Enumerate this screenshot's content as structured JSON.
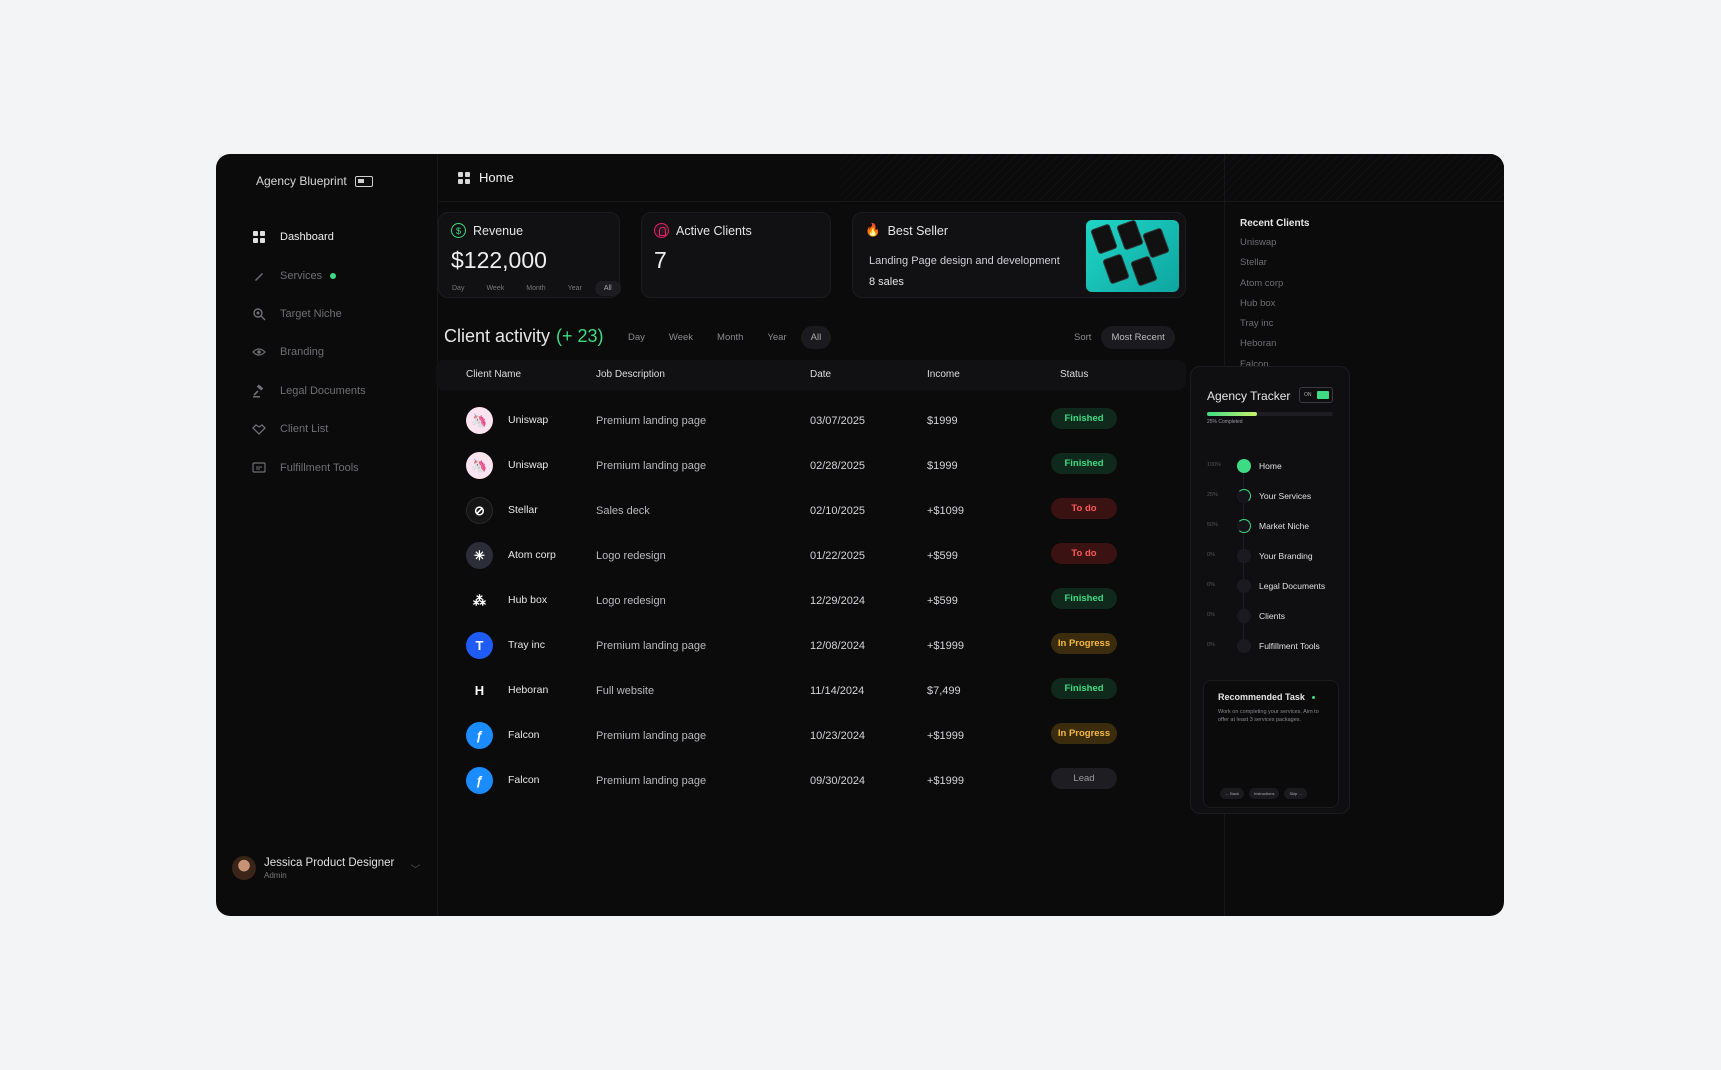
{
  "sidebar": {
    "brand": "Agency Blueprint",
    "items": [
      {
        "label": "Dashboard",
        "icon": "grid-icon"
      },
      {
        "label": "Services",
        "icon": "pen-icon"
      },
      {
        "label": "Target Niche",
        "icon": "target-icon"
      },
      {
        "label": "Branding",
        "icon": "eye-icon"
      },
      {
        "label": "Legal Documents",
        "icon": "gavel-icon"
      },
      {
        "label": "Client List",
        "icon": "handshake-icon"
      },
      {
        "label": "Fulfillment Tools",
        "icon": "tools-icon"
      }
    ],
    "user": {
      "name": "Jessica Product Designer",
      "role": "Admin"
    }
  },
  "header": {
    "title": "Home"
  },
  "revenue": {
    "title": "Revenue",
    "value": "$122,000",
    "ranges": [
      "Day",
      "Week",
      "Month",
      "Year",
      "All"
    ]
  },
  "active_clients": {
    "title": "Active Clients",
    "value": "7"
  },
  "best_seller": {
    "title": "Best Seller",
    "product": "Landing Page design and development",
    "sales": "8 sales"
  },
  "activity": {
    "title": "Client activity",
    "count": "(+ 23)",
    "filters": [
      "Day",
      "Week",
      "Month",
      "Year",
      "All"
    ],
    "sort_label": "Sort",
    "sort_value": "Most Recent"
  },
  "table": {
    "headers": [
      "Client Name",
      "Job Description",
      "Date",
      "Income",
      "Status"
    ],
    "rows": [
      {
        "client": "Uniswap",
        "job": "Premium landing page",
        "date": "03/07/2025",
        "income": "$1999",
        "status": "Finished"
      },
      {
        "client": "Uniswap",
        "job": "Premium landing page",
        "date": "02/28/2025",
        "income": "$1999",
        "status": "Finished"
      },
      {
        "client": "Stellar",
        "job": "Sales deck",
        "date": "02/10/2025",
        "income": "+$1099",
        "status": "To do"
      },
      {
        "client": "Atom corp",
        "job": "Logo redesign",
        "date": "01/22/2025",
        "income": "+$599",
        "status": "To do"
      },
      {
        "client": "Hub box",
        "job": "Logo redesign",
        "date": "12/29/2024",
        "income": "+$599",
        "status": "Finished"
      },
      {
        "client": "Tray inc",
        "job": "Premium landing page",
        "date": "12/08/2024",
        "income": "+$1999",
        "status": "In Progress"
      },
      {
        "client": "Heboran",
        "job": "Full website",
        "date": "11/14/2024",
        "income": "$7,499",
        "status": "Finished"
      },
      {
        "client": "Falcon",
        "job": "Premium landing page",
        "date": "10/23/2024",
        "income": "+$1999",
        "status": "In Progress"
      },
      {
        "client": "Falcon",
        "job": "Premium landing page",
        "date": "09/30/2024",
        "income": "+$1999",
        "status": "Lead"
      }
    ]
  },
  "recent_clients": {
    "title": "Recent Clients",
    "items": [
      "Uniswap",
      "Stellar",
      "Atom corp",
      "Hub box",
      "Tray inc",
      "Heboran",
      "Falcon"
    ]
  },
  "tracker": {
    "title": "Agency Tracker",
    "toggle": "ON",
    "progress": 0.25,
    "progress_label": "25% Completed",
    "steps": [
      {
        "pct": "100%",
        "label": "Home"
      },
      {
        "pct": "25%",
        "label": "Your Services"
      },
      {
        "pct": "50%",
        "label": "Market Niche"
      },
      {
        "pct": "0%",
        "label": "Your Branding"
      },
      {
        "pct": "0%",
        "label": "Legal Documents"
      },
      {
        "pct": "0%",
        "label": "Clients"
      },
      {
        "pct": "0%",
        "label": "Fulfillment Tools"
      }
    ],
    "task": {
      "title": "Recommended Task",
      "text": "Work on completing your services. Aim to offer at least 3 services packages.",
      "buttons": [
        "← Back",
        "Instructions",
        "Skip →"
      ]
    }
  }
}
